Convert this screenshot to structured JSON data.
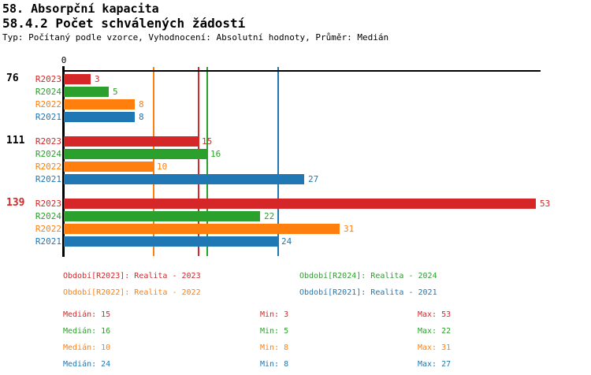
{
  "header": {
    "title": "58. Absorpční kapacita",
    "subtitle": "58.4.2 Počet schválených žádostí",
    "meta": "Typ: Počítaný podle vzorce, Vyhodnocení: Absolutní hodnoty, Průměr: Medián"
  },
  "chart_data": {
    "type": "bar",
    "orientation": "horizontal",
    "xlim": [
      0,
      53.5
    ],
    "grid": false,
    "axis_zero_label": "0",
    "series_colors": {
      "R2023": "#d62728",
      "R2024": "#2ca02c",
      "R2022": "#ff7f0e",
      "R2021": "#1f77b4"
    },
    "groups": [
      {
        "label": "76",
        "label_color": "#000000",
        "bars": [
          {
            "series": "R2023",
            "value": 3
          },
          {
            "series": "R2024",
            "value": 5
          },
          {
            "series": "R2022",
            "value": 8
          },
          {
            "series": "R2021",
            "value": 8
          }
        ]
      },
      {
        "label": "111",
        "label_color": "#000000",
        "bars": [
          {
            "series": "R2023",
            "value": 15
          },
          {
            "series": "R2024",
            "value": 16
          },
          {
            "series": "R2022",
            "value": 10
          },
          {
            "series": "R2021",
            "value": 27
          }
        ]
      },
      {
        "label": "139",
        "label_color": "#d62728",
        "bars": [
          {
            "series": "R2023",
            "value": 53
          },
          {
            "series": "R2024",
            "value": 22
          },
          {
            "series": "R2022",
            "value": 31
          },
          {
            "series": "R2021",
            "value": 24
          }
        ]
      }
    ],
    "median_lines": [
      {
        "series": "R2022",
        "value": 10
      },
      {
        "series": "R2023",
        "value": 15
      },
      {
        "series": "R2024",
        "value": 16
      },
      {
        "series": "R2021",
        "value": 24
      }
    ]
  },
  "legend": {
    "items": [
      {
        "series": "R2023",
        "label": "Období[R2023]: Realita - 2023",
        "color": "#d62728"
      },
      {
        "series": "R2024",
        "label": "Období[R2024]: Realita - 2024",
        "color": "#2ca02c"
      },
      {
        "series": "R2022",
        "label": "Období[R2022]: Realita - 2022",
        "color": "#ff7f0e"
      },
      {
        "series": "R2021",
        "label": "Období[R2021]: Realita - 2021",
        "color": "#1f77b4"
      }
    ]
  },
  "stats": {
    "labels": {
      "median": "Medián",
      "min": "Min",
      "max": "Max"
    },
    "rows": [
      {
        "series": "R2023",
        "color": "#d62728",
        "median": 15,
        "min": 3,
        "max": 53
      },
      {
        "series": "R2024",
        "color": "#2ca02c",
        "median": 16,
        "min": 5,
        "max": 22
      },
      {
        "series": "R2022",
        "color": "#ff7f0e",
        "median": 10,
        "min": 8,
        "max": 31
      },
      {
        "series": "R2021",
        "color": "#1f77b4",
        "median": 24,
        "min": 8,
        "max": 27
      }
    ]
  }
}
